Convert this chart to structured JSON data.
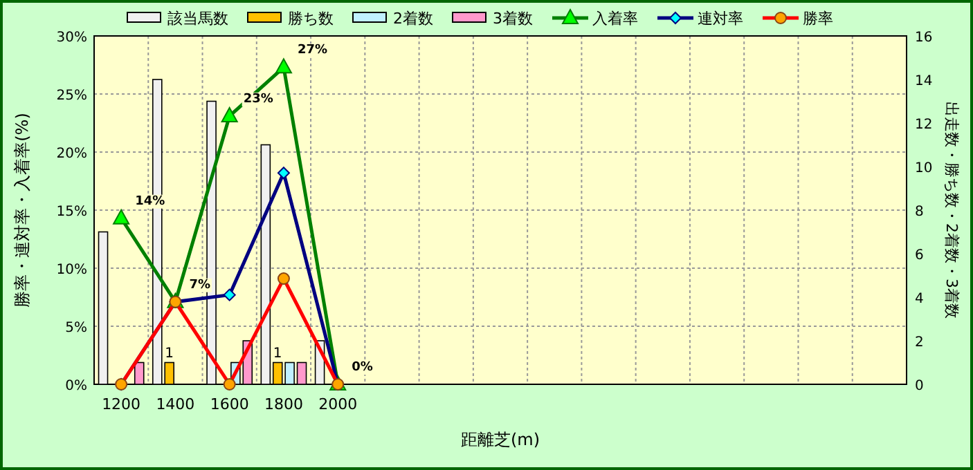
{
  "chart_data": {
    "type": "bar",
    "categories": [
      "1200",
      "1400",
      "1600",
      "1800",
      "2000",
      null,
      null,
      null,
      null,
      null,
      null,
      null,
      null,
      null,
      null
    ],
    "xlabel": "距離芝(m)",
    "ylabel": "勝率・連対率・入着率(%)",
    "y2label": "出走数・勝ち数・2着数・3着数",
    "ylim": [
      0,
      30
    ],
    "yticks": [
      {
        "value": 0,
        "label": "0%"
      },
      {
        "value": 5,
        "label": "5%"
      },
      {
        "value": 10,
        "label": "10%"
      },
      {
        "value": 15,
        "label": "15%"
      },
      {
        "value": 20,
        "label": "20%"
      },
      {
        "value": 25,
        "label": "25%"
      },
      {
        "value": 30,
        "label": "30%"
      }
    ],
    "y2lim": [
      0,
      16
    ],
    "y2ticks": [
      0,
      2,
      4,
      6,
      8,
      10,
      12,
      14,
      16
    ],
    "grid": true,
    "legend": "top",
    "series": [
      {
        "name": "該当馬数",
        "axis": "y2",
        "color": "#f0f0f0",
        "values": [
          7,
          14,
          13,
          11,
          2,
          null,
          null,
          null,
          null,
          null,
          null,
          null,
          null,
          null,
          null
        ]
      },
      {
        "name": "勝ち数",
        "axis": "y2",
        "color": "#ffc000",
        "values": [
          0,
          1,
          0,
          1,
          0,
          null,
          null,
          null,
          null,
          null,
          null,
          null,
          null,
          null,
          null
        ],
        "value_labels": [
          null,
          "1",
          null,
          "1",
          null,
          null,
          null,
          null,
          null,
          null,
          null,
          null,
          null,
          null,
          null
        ]
      },
      {
        "name": "2着数",
        "axis": "y2",
        "color": "#c0f0ff",
        "values": [
          0,
          0,
          1,
          1,
          0,
          null,
          null,
          null,
          null,
          null,
          null,
          null,
          null,
          null,
          null
        ]
      },
      {
        "name": "3着数",
        "axis": "y2",
        "color": "#ff99cc",
        "values": [
          1,
          0,
          2,
          1,
          0,
          null,
          null,
          null,
          null,
          null,
          null,
          null,
          null,
          null,
          null
        ]
      },
      {
        "name": "入着率",
        "type": "line",
        "color": "#008000",
        "marker": "triangle",
        "values": [
          14.3,
          7.1,
          23.1,
          27.3,
          0,
          null,
          null,
          null,
          null,
          null,
          null,
          null,
          null,
          null,
          null
        ],
        "value_labels": [
          "14%",
          "7%",
          "23%",
          "27%",
          "0%",
          null,
          null,
          null,
          null,
          null,
          null,
          null,
          null,
          null,
          null
        ]
      },
      {
        "name": "連対率",
        "type": "line",
        "color": "#000080",
        "marker": "diamond",
        "values": [
          0,
          7.1,
          7.7,
          18.2,
          0,
          null,
          null,
          null,
          null,
          null,
          null,
          null,
          null,
          null,
          null
        ]
      },
      {
        "name": "勝率",
        "type": "line",
        "color": "#ff0000",
        "marker": "circle",
        "values": [
          0,
          7.1,
          0,
          9.1,
          0,
          null,
          null,
          null,
          null,
          null,
          null,
          null,
          null,
          null,
          null
        ]
      }
    ]
  }
}
